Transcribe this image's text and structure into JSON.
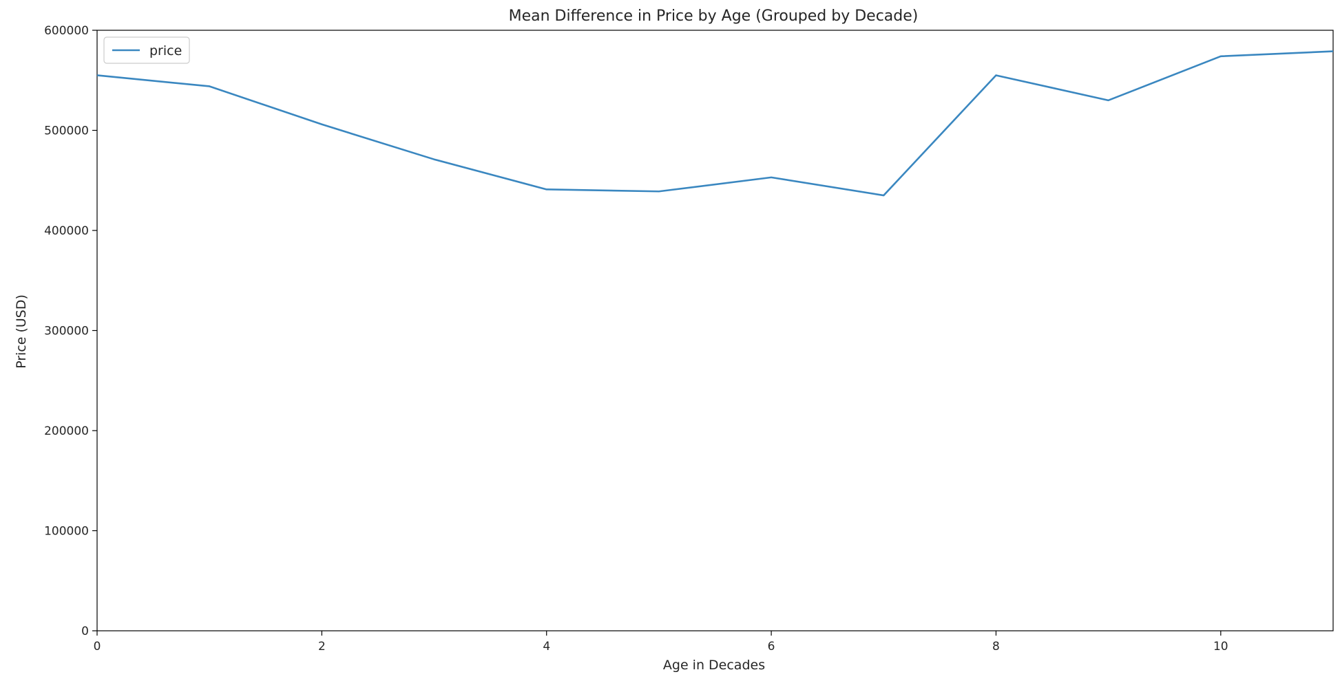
{
  "chart_data": {
    "type": "line",
    "title": "Mean Difference in Price by Age (Grouped by Decade)",
    "xlabel": "Age in Decades",
    "ylabel": "Price (USD)",
    "xlim": [
      0,
      11
    ],
    "ylim": [
      0,
      600000
    ],
    "xticks": [
      0,
      2,
      4,
      6,
      8,
      10
    ],
    "yticks": [
      0,
      100000,
      200000,
      300000,
      400000,
      500000,
      600000
    ],
    "grid": false,
    "legend": "top-left",
    "x": [
      0,
      1,
      2,
      3,
      4,
      5,
      6,
      7,
      8,
      9,
      10,
      11
    ],
    "series": [
      {
        "name": "price",
        "color": "#3a87c0",
        "values": [
          555000,
          544000,
          506000,
          471000,
          441000,
          439000,
          453000,
          435000,
          555000,
          530000,
          574000,
          579000
        ]
      }
    ]
  }
}
